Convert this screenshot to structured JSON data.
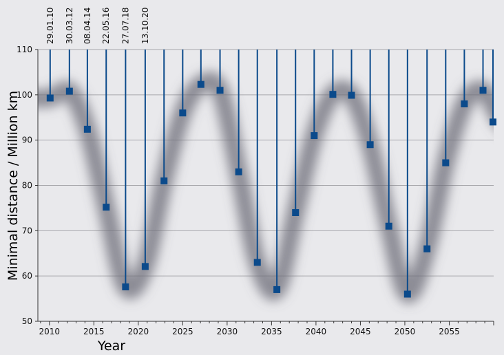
{
  "chart_data": {
    "type": "scatter",
    "title": "",
    "xlabel": "Year",
    "ylabel": "Minimal distance / Million km",
    "xlim": [
      2008.7,
      2060.0
    ],
    "ylim": [
      50,
      110
    ],
    "x_ticks": [
      2010,
      2015,
      2020,
      2025,
      2030,
      2035,
      2040,
      2045,
      2050,
      2055
    ],
    "y_ticks": [
      50,
      60,
      70,
      80,
      90,
      100,
      110
    ],
    "grid": "horizontal",
    "marker": "square",
    "colors": {
      "background": "#e9e9ec",
      "marker": "#0b4a8b",
      "stem": "#0b4a8b",
      "grid": "#a8a8ac",
      "band": "#6e6e78"
    },
    "date_labels": [
      "29.01.10",
      "30.03.12",
      "08.04.14",
      "22.05.16",
      "27.07.18",
      "13.10.20"
    ],
    "points": [
      {
        "x": 2010.08,
        "y": 99.3
      },
      {
        "x": 2012.25,
        "y": 100.8
      },
      {
        "x": 2014.27,
        "y": 92.4
      },
      {
        "x": 2016.39,
        "y": 75.2
      },
      {
        "x": 2018.57,
        "y": 57.6
      },
      {
        "x": 2020.78,
        "y": 62.1
      },
      {
        "x": 2022.9,
        "y": 81.0
      },
      {
        "x": 2025.0,
        "y": 96.0
      },
      {
        "x": 2027.05,
        "y": 102.3
      },
      {
        "x": 2029.2,
        "y": 101.0
      },
      {
        "x": 2031.3,
        "y": 83.0
      },
      {
        "x": 2033.4,
        "y": 63.0
      },
      {
        "x": 2035.6,
        "y": 57.0
      },
      {
        "x": 2037.7,
        "y": 74.0
      },
      {
        "x": 2039.8,
        "y": 91.0
      },
      {
        "x": 2041.9,
        "y": 100.1
      },
      {
        "x": 2044.0,
        "y": 99.9
      },
      {
        "x": 2046.1,
        "y": 89.0
      },
      {
        "x": 2048.2,
        "y": 71.0
      },
      {
        "x": 2050.3,
        "y": 56.0
      },
      {
        "x": 2052.5,
        "y": 66.0
      },
      {
        "x": 2054.6,
        "y": 85.0
      },
      {
        "x": 2056.7,
        "y": 98.0
      },
      {
        "x": 2058.8,
        "y": 101.0
      },
      {
        "x": 2060.9,
        "y": 94.0
      }
    ]
  }
}
